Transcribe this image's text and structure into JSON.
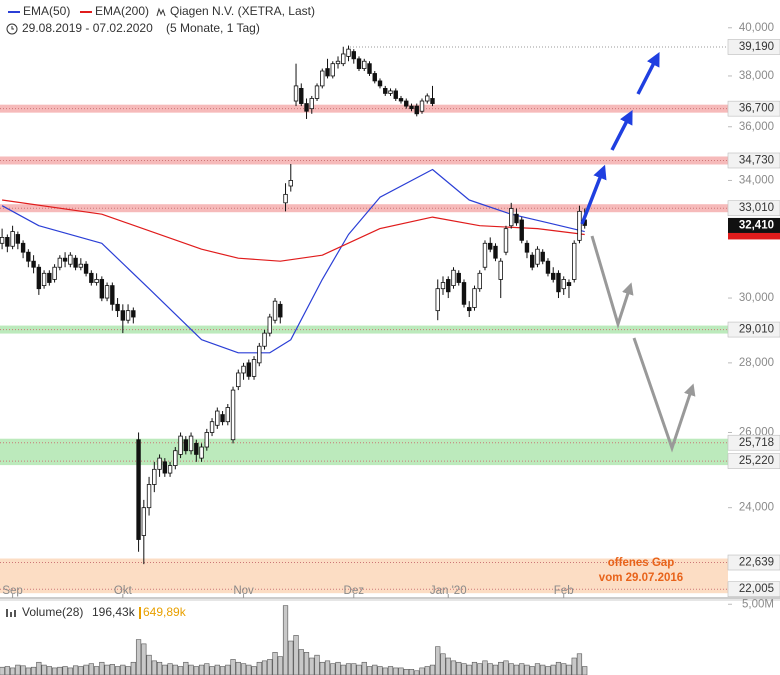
{
  "chart_data": {
    "type": "candlestick",
    "title": "Qiagen N.V. (XETRA, Last)",
    "date_range": "29.08.2019 - 07.02.2020",
    "period": "(5 Monate, 1 Tag)",
    "log_scale": true,
    "xlim": [
      -0.4,
      138.3
    ],
    "ylim": [
      21.8,
      41.2
    ],
    "yticks": [
      {
        "value": 40,
        "label": "40,000"
      },
      {
        "value": 38,
        "label": "38,000"
      },
      {
        "value": 36,
        "label": "36,000"
      },
      {
        "value": 34,
        "label": "34,000"
      },
      {
        "value": 30,
        "label": "30,000"
      },
      {
        "value": 28,
        "label": "28,000"
      },
      {
        "value": 26,
        "label": "26,000"
      },
      {
        "value": 24,
        "label": "24,000"
      }
    ],
    "xticks": [
      {
        "value": 2,
        "label": "Sep"
      },
      {
        "value": 23,
        "label": "Okt"
      },
      {
        "value": 46,
        "label": "Nov"
      },
      {
        "value": 67,
        "label": "Dez"
      },
      {
        "value": 85,
        "label": "Jan '20"
      },
      {
        "value": 107,
        "label": "Feb"
      }
    ],
    "candles": [
      [
        31.8,
        32.3,
        31.6,
        32.0
      ],
      [
        32.0,
        32.1,
        31.5,
        31.7
      ],
      [
        31.7,
        32.4,
        31.6,
        32.2
      ],
      [
        32.1,
        32.2,
        31.6,
        31.8
      ],
      [
        31.8,
        31.9,
        31.3,
        31.5
      ],
      [
        31.5,
        31.6,
        31.0,
        31.2
      ],
      [
        31.2,
        31.4,
        30.8,
        31.0
      ],
      [
        31.0,
        31.1,
        30.1,
        30.3
      ],
      [
        30.4,
        30.9,
        30.3,
        30.8
      ],
      [
        30.8,
        30.9,
        30.4,
        30.5
      ],
      [
        30.6,
        31.1,
        30.5,
        31.0
      ],
      [
        31.0,
        31.4,
        30.9,
        31.3
      ],
      [
        31.3,
        31.5,
        31.0,
        31.2
      ],
      [
        31.1,
        31.5,
        31.0,
        31.4
      ],
      [
        31.3,
        31.4,
        30.9,
        31.0
      ],
      [
        31.0,
        31.3,
        30.9,
        31.1
      ],
      [
        31.1,
        31.2,
        30.7,
        30.8
      ],
      [
        30.8,
        30.9,
        30.4,
        30.5
      ],
      [
        30.5,
        30.8,
        30.4,
        30.6
      ],
      [
        30.6,
        30.7,
        29.9,
        30.0
      ],
      [
        30.0,
        30.5,
        29.9,
        30.4
      ],
      [
        30.4,
        30.5,
        29.6,
        29.8
      ],
      [
        29.8,
        30.0,
        29.4,
        29.6
      ],
      [
        29.6,
        29.8,
        28.9,
        29.3
      ],
      [
        29.3,
        29.8,
        29.2,
        29.6
      ],
      [
        29.6,
        29.7,
        29.2,
        29.4
      ],
      [
        25.8,
        26.0,
        22.9,
        23.2
      ],
      [
        23.3,
        24.2,
        22.6,
        24.0
      ],
      [
        24.0,
        24.8,
        23.8,
        24.6
      ],
      [
        24.6,
        25.2,
        24.4,
        25.0
      ],
      [
        25.0,
        25.4,
        24.8,
        25.3
      ],
      [
        25.2,
        25.3,
        24.8,
        24.9
      ],
      [
        24.9,
        25.2,
        24.8,
        25.1
      ],
      [
        25.1,
        25.6,
        25.0,
        25.5
      ],
      [
        25.4,
        26.0,
        25.3,
        25.9
      ],
      [
        25.8,
        25.9,
        25.4,
        25.5
      ],
      [
        25.5,
        26.0,
        25.4,
        25.9
      ],
      [
        25.7,
        25.8,
        25.2,
        25.4
      ],
      [
        25.3,
        25.7,
        25.2,
        25.6
      ],
      [
        25.6,
        26.1,
        25.5,
        26.0
      ],
      [
        26.0,
        26.4,
        25.9,
        26.3
      ],
      [
        26.2,
        26.7,
        26.1,
        26.6
      ],
      [
        26.5,
        26.6,
        26.2,
        26.3
      ],
      [
        26.3,
        26.8,
        26.2,
        26.7
      ],
      [
        25.8,
        27.3,
        25.7,
        27.2
      ],
      [
        27.3,
        27.8,
        27.2,
        27.7
      ],
      [
        27.7,
        28.0,
        27.5,
        27.9
      ],
      [
        28.0,
        28.1,
        27.5,
        27.6
      ],
      [
        27.6,
        28.2,
        27.5,
        28.1
      ],
      [
        28.0,
        28.6,
        27.9,
        28.5
      ],
      [
        28.5,
        29.0,
        28.4,
        28.9
      ],
      [
        28.9,
        29.5,
        28.8,
        29.4
      ],
      [
        29.3,
        30.0,
        29.2,
        29.9
      ],
      [
        29.8,
        29.9,
        29.2,
        29.4
      ],
      [
        33.2,
        33.9,
        32.9,
        33.5
      ],
      [
        33.8,
        34.6,
        33.6,
        34.0
      ],
      [
        37.0,
        38.5,
        36.8,
        37.6
      ],
      [
        37.5,
        37.7,
        36.8,
        36.9
      ],
      [
        36.9,
        37.1,
        36.3,
        36.6
      ],
      [
        36.7,
        37.2,
        36.5,
        37.1
      ],
      [
        37.1,
        37.7,
        37.0,
        37.6
      ],
      [
        37.6,
        38.3,
        37.5,
        38.2
      ],
      [
        38.3,
        38.7,
        37.9,
        38.0
      ],
      [
        38.0,
        38.6,
        37.9,
        38.5
      ],
      [
        38.5,
        38.8,
        38.3,
        38.6
      ],
      [
        38.5,
        39.2,
        38.4,
        38.9
      ],
      [
        38.8,
        39.25,
        38.6,
        39.1
      ],
      [
        39.0,
        39.1,
        38.5,
        38.7
      ],
      [
        38.7,
        38.8,
        38.2,
        38.3
      ],
      [
        38.3,
        38.7,
        38.2,
        38.6
      ],
      [
        38.5,
        38.6,
        38.0,
        38.1
      ],
      [
        38.1,
        38.2,
        37.7,
        37.8
      ],
      [
        37.8,
        37.9,
        37.5,
        37.6
      ],
      [
        37.5,
        37.6,
        37.2,
        37.3
      ],
      [
        37.3,
        37.5,
        37.2,
        37.4
      ],
      [
        37.4,
        37.5,
        37.0,
        37.1
      ],
      [
        37.1,
        37.2,
        36.9,
        37.0
      ],
      [
        37.0,
        37.1,
        36.7,
        36.8
      ],
      [
        36.8,
        36.9,
        36.6,
        36.7
      ],
      [
        36.8,
        36.9,
        36.4,
        36.5
      ],
      [
        36.6,
        37.1,
        36.5,
        37.0
      ],
      [
        37.0,
        37.3,
        36.9,
        37.2
      ],
      [
        37.1,
        37.6,
        36.8,
        36.9
      ],
      [
        29.6,
        30.6,
        29.3,
        30.3
      ],
      [
        30.3,
        30.7,
        30.1,
        30.5
      ],
      [
        30.6,
        30.7,
        30.0,
        30.2
      ],
      [
        30.4,
        31.0,
        30.3,
        30.9
      ],
      [
        30.8,
        30.9,
        30.4,
        30.5
      ],
      [
        30.5,
        30.6,
        29.7,
        29.8
      ],
      [
        29.7,
        29.9,
        29.4,
        29.6
      ],
      [
        29.7,
        30.4,
        29.6,
        30.3
      ],
      [
        30.3,
        30.9,
        30.2,
        30.8
      ],
      [
        31.0,
        31.9,
        30.9,
        31.8
      ],
      [
        31.8,
        32.0,
        31.5,
        31.6
      ],
      [
        31.7,
        31.8,
        31.2,
        31.3
      ],
      [
        30.6,
        31.3,
        30.0,
        31.2
      ],
      [
        31.5,
        32.4,
        31.4,
        32.3
      ],
      [
        32.4,
        33.2,
        32.3,
        33.0
      ],
      [
        32.8,
        33.0,
        32.4,
        32.5
      ],
      [
        32.6,
        32.7,
        31.8,
        31.9
      ],
      [
        31.8,
        31.9,
        31.3,
        31.5
      ],
      [
        31.4,
        31.5,
        30.9,
        31.0
      ],
      [
        31.1,
        31.7,
        31.0,
        31.6
      ],
      [
        31.5,
        31.6,
        31.1,
        31.2
      ],
      [
        31.2,
        31.3,
        30.7,
        30.8
      ],
      [
        30.8,
        31.0,
        30.5,
        30.6
      ],
      [
        30.8,
        30.9,
        30.0,
        30.2
      ],
      [
        30.3,
        30.7,
        30.1,
        30.6
      ],
      [
        30.5,
        30.6,
        30.0,
        30.4
      ],
      [
        30.6,
        31.9,
        30.5,
        31.8
      ],
      [
        31.9,
        33.1,
        31.8,
        32.9
      ],
      [
        32.6,
        33.0,
        32.3,
        32.41
      ]
    ],
    "series": [
      {
        "name": "EMA(50)",
        "color": "#2b3fd6",
        "x": [
          0,
          7,
          19,
          28,
          38,
          45,
          51,
          55,
          61,
          66,
          72,
          82,
          89,
          97,
          104,
          111
        ],
        "values": [
          33.1,
          32.4,
          31.8,
          30.3,
          28.7,
          28.3,
          28.3,
          28.7,
          30.6,
          32.1,
          33.4,
          34.4,
          33.3,
          32.8,
          32.5,
          32.2
        ]
      },
      {
        "name": "EMA(200)",
        "color": "#e01c1c",
        "x": [
          0,
          19,
          38,
          45,
          53,
          61,
          72,
          82,
          91,
          102,
          111
        ],
        "values": [
          33.3,
          32.8,
          31.6,
          31.3,
          31.2,
          31.4,
          32.3,
          32.7,
          32.4,
          32.3,
          32.1
        ]
      }
    ],
    "zones": [
      {
        "style": "line",
        "color": "#999999",
        "levels": [
          {
            "value": 39.19,
            "label": "39,190"
          }
        ]
      },
      {
        "style": "band",
        "color": "#f3a3a3",
        "levels": [
          {
            "value": 36.7,
            "label": "36,700"
          }
        ]
      },
      {
        "style": "band",
        "color": "#f3a3a3",
        "levels": [
          {
            "value": 34.73,
            "label": "34,730"
          }
        ]
      },
      {
        "style": "band",
        "color": "#f3a3a3",
        "levels": [
          {
            "value": 33.01,
            "label": "33,010"
          }
        ]
      },
      {
        "style": "band",
        "color": "#a6e3a6",
        "levels": [
          {
            "value": 29.01,
            "label": "29,010"
          }
        ]
      },
      {
        "style": "band",
        "color": "#a6e3a6",
        "levels": [
          {
            "value": 25.718,
            "label": "25,718"
          },
          {
            "value": 25.22,
            "label": "25,220"
          }
        ]
      },
      {
        "style": "band",
        "color": "#fbd2b0",
        "levels": [
          {
            "value": 22.639,
            "label": "22,639"
          },
          {
            "value": 22.005,
            "label": "22,005"
          }
        ]
      }
    ],
    "last_price": {
      "value": 32.41,
      "label": "32,410"
    },
    "annotation": [
      "offenes Gap",
      "vom 29.07.2016"
    ],
    "volume": {
      "name": "Volume(28)",
      "stat1": "196,43k",
      "stat2": "649,89k",
      "ylim": [
        0,
        5.3
      ],
      "yticks": [
        {
          "value": 5,
          "label": "5,00M"
        }
      ],
      "values": [
        0.55,
        0.6,
        0.5,
        0.7,
        0.65,
        0.5,
        0.55,
        0.9,
        0.7,
        0.6,
        0.5,
        0.55,
        0.6,
        0.5,
        0.65,
        0.6,
        0.7,
        0.8,
        0.6,
        0.9,
        0.7,
        0.75,
        0.6,
        0.7,
        0.6,
        0.9,
        2.5,
        2.2,
        1.4,
        1.0,
        0.9,
        0.7,
        0.8,
        0.7,
        0.6,
        0.9,
        0.7,
        0.6,
        0.7,
        0.8,
        0.6,
        0.7,
        0.6,
        0.7,
        1.1,
        0.9,
        0.8,
        0.7,
        0.6,
        0.9,
        1.0,
        1.1,
        1.6,
        1.3,
        4.9,
        2.4,
        2.8,
        1.8,
        1.6,
        1.2,
        1.4,
        0.9,
        1.0,
        0.8,
        0.9,
        0.7,
        0.8,
        0.8,
        0.7,
        0.9,
        0.6,
        0.7,
        0.6,
        0.5,
        0.6,
        0.5,
        0.5,
        0.4,
        0.4,
        0.3,
        0.5,
        0.6,
        0.7,
        2.0,
        1.5,
        1.2,
        1.0,
        0.9,
        0.8,
        0.7,
        0.9,
        0.8,
        1.0,
        0.8,
        0.7,
        0.9,
        1.0,
        0.8,
        0.7,
        0.8,
        0.7,
        0.6,
        0.8,
        0.7,
        0.6,
        0.7,
        0.9,
        0.8,
        0.7,
        1.2,
        1.5,
        0.6
      ]
    }
  }
}
